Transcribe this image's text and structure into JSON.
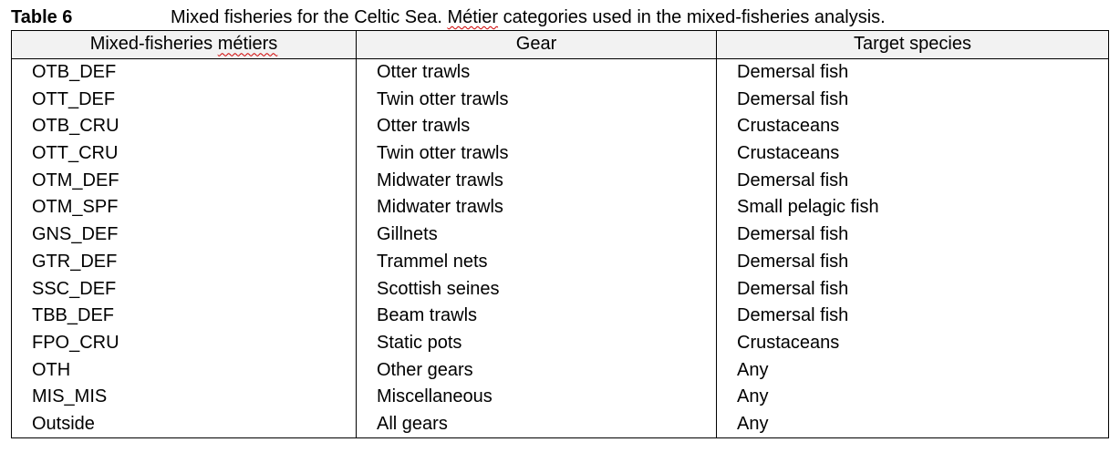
{
  "caption": {
    "label": "Table 6",
    "title_before": "Mixed fisheries for the Celtic Sea. ",
    "title_squiggle": "Métier",
    "title_after": " categories used in the mixed-fisheries analysis."
  },
  "table": {
    "headers": {
      "metier_before": "Mixed-fisheries ",
      "metier_squiggle": "métiers",
      "gear": "Gear",
      "target": "Target species"
    },
    "rows": [
      {
        "metier": "OTB_DEF",
        "gear": "Otter trawls",
        "target": "Demersal fish"
      },
      {
        "metier": "OTT_DEF",
        "gear": "Twin otter trawls",
        "target": "Demersal fish"
      },
      {
        "metier": "OTB_CRU",
        "gear": "Otter trawls",
        "target": "Crustaceans"
      },
      {
        "metier": "OTT_CRU",
        "gear": "Twin otter trawls",
        "target": "Crustaceans"
      },
      {
        "metier": "OTM_DEF",
        "gear": "Midwater trawls",
        "target": "Demersal fish"
      },
      {
        "metier": "OTM_SPF",
        "gear": "Midwater trawls",
        "target": "Small pelagic fish"
      },
      {
        "metier": "GNS_DEF",
        "gear": "Gillnets",
        "target": "Demersal fish"
      },
      {
        "metier": "GTR_DEF",
        "gear": "Trammel nets",
        "target": "Demersal fish"
      },
      {
        "metier": "SSC_DEF",
        "gear": "Scottish seines",
        "target": "Demersal fish"
      },
      {
        "metier": "TBB_DEF",
        "gear": "Beam trawls",
        "target": "Demersal fish"
      },
      {
        "metier": "FPO_CRU",
        "gear": "Static pots",
        "target": "Crustaceans"
      },
      {
        "metier": "OTH",
        "gear": "Other gears",
        "target": "Any"
      },
      {
        "metier": "MIS_MIS",
        "gear": "Miscellaneous",
        "target": "Any"
      },
      {
        "metier": "Outside",
        "gear": "All gears",
        "target": "Any"
      }
    ]
  }
}
